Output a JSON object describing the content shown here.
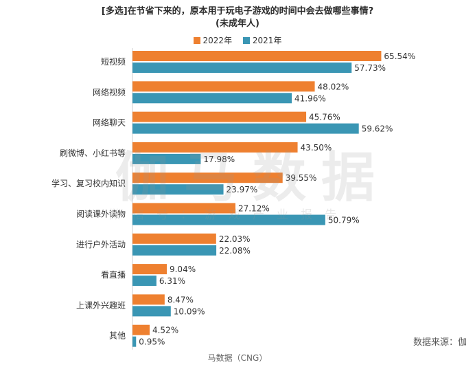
{
  "title_line1": "[多选]在节省下来的，原本用于玩电子游戏的时间中会去做哪些事情?",
  "title_line2": "(未成年人)",
  "watermark_main": "伽马数据",
  "watermark_sub": "微信号：游戏产业报告",
  "source_note": "数据来源：伽",
  "footer": "马数据（CNG）",
  "colors": {
    "series_2022": "#ee8030",
    "series_2021": "#3a96b4"
  },
  "chart_data": {
    "type": "bar",
    "orientation": "horizontal",
    "categories": [
      "短视频",
      "网络视频",
      "网络聊天",
      "刷微博、小红书等",
      "学习、复习校内知识",
      "阅读课外读物",
      "进行户外活动",
      "看直播",
      "上课外兴趣班",
      "其他"
    ],
    "series": [
      {
        "name": "2022年",
        "values": [
          65.54,
          48.02,
          45.76,
          43.5,
          39.55,
          27.12,
          22.03,
          9.04,
          8.47,
          4.52
        ],
        "labels": [
          "65.54%",
          "48.02%",
          "45.76%",
          "43.50%",
          "39.55%",
          "27.12%",
          "22.03%",
          "9.04%",
          "8.47%",
          "4.52%"
        ]
      },
      {
        "name": "2021年",
        "values": [
          57.73,
          41.96,
          59.62,
          17.98,
          23.97,
          50.79,
          22.08,
          6.31,
          10.09,
          0.95
        ],
        "labels": [
          "57.73%",
          "41.96%",
          "59.62%",
          "17.98%",
          "23.97%",
          "50.79%",
          "22.08%",
          "6.31%",
          "10.09%",
          "0.95%"
        ]
      }
    ],
    "xlim": [
      0,
      70
    ],
    "legend_position": "top-center",
    "grid": false
  }
}
